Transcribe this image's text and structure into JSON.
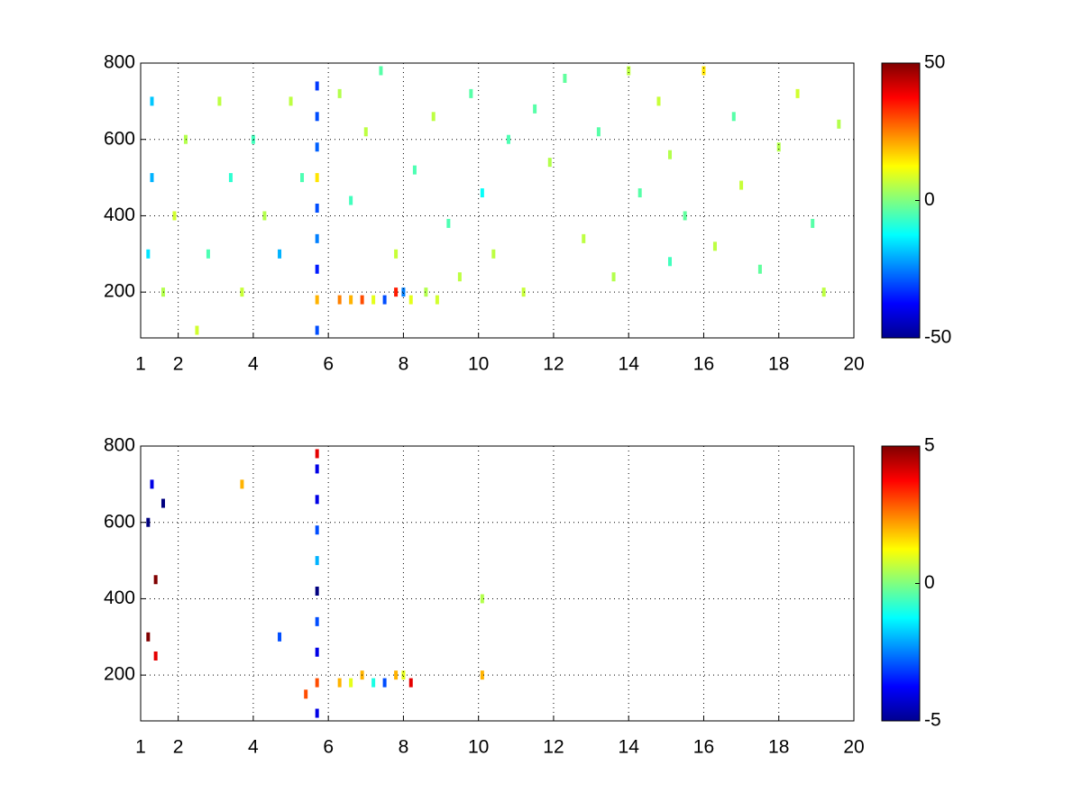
{
  "chart_data": [
    {
      "type": "heatmap",
      "colormap": "jet",
      "grid": true,
      "xlim": [
        1,
        20
      ],
      "xticks": [
        1,
        2,
        4,
        6,
        8,
        10,
        12,
        14,
        16,
        18,
        20
      ],
      "ylim": [
        80,
        800
      ],
      "yticks": [
        200,
        400,
        600,
        800
      ],
      "clim": [
        -50,
        50
      ],
      "cticks": [
        -50,
        0,
        50
      ],
      "x": [
        5.7,
        5.7,
        5.7,
        5.7,
        5.7,
        5.7,
        5.7,
        5.7,
        5.7,
        6.3,
        6.6,
        6.9,
        7.2,
        7.5,
        7.8,
        8.0,
        8.2,
        8.6,
        8.9,
        1.2,
        1.3,
        1.3,
        1.6,
        1.9,
        2.2,
        2.5,
        2.8,
        3.1,
        3.4,
        3.7,
        4.0,
        4.3,
        4.7,
        5.0,
        5.3,
        6.3,
        6.6,
        7.0,
        7.4,
        7.8,
        8.3,
        8.8,
        9.2,
        9.5,
        9.8,
        10.1,
        10.4,
        10.8,
        11.2,
        11.5,
        11.9,
        12.3,
        12.8,
        13.2,
        13.6,
        14.0,
        14.3,
        14.8,
        15.1,
        15.1,
        15.5,
        16.0,
        16.3,
        16.8,
        17.0,
        17.5,
        18.0,
        18.5,
        18.9,
        19.2,
        19.6
      ],
      "y": [
        100,
        180,
        260,
        340,
        420,
        500,
        580,
        660,
        740,
        180,
        180,
        180,
        180,
        180,
        200,
        200,
        180,
        200,
        180,
        300,
        500,
        700,
        200,
        400,
        600,
        100,
        300,
        700,
        500,
        200,
        600,
        400,
        300,
        700,
        500,
        720,
        440,
        620,
        780,
        300,
        520,
        660,
        380,
        240,
        720,
        460,
        300,
        600,
        200,
        680,
        540,
        760,
        340,
        620,
        240,
        780,
        460,
        700,
        280,
        560,
        400,
        780,
        320,
        660,
        480,
        260,
        580,
        720,
        380,
        200,
        640
      ],
      "values": [
        -30,
        20,
        -35,
        -25,
        -30,
        15,
        -28,
        -30,
        -32,
        25,
        20,
        30,
        10,
        -30,
        35,
        -25,
        10,
        5,
        8,
        -15,
        -20,
        -18,
        5,
        8,
        5,
        8,
        -5,
        6,
        -8,
        7,
        -6,
        5,
        -20,
        6,
        -5,
        5,
        -6,
        6,
        -4,
        7,
        -5,
        6,
        -5,
        6,
        -4,
        -12,
        6,
        -5,
        7,
        -4,
        5,
        -3,
        6,
        -4,
        5,
        6,
        -4,
        7,
        -6,
        5,
        -3,
        15,
        6,
        -4,
        7,
        -3,
        5,
        8,
        -4,
        6,
        5
      ]
    },
    {
      "type": "heatmap",
      "colormap": "jet",
      "grid": true,
      "xlim": [
        1,
        20
      ],
      "xticks": [
        1,
        2,
        4,
        6,
        8,
        10,
        12,
        14,
        16,
        18,
        20
      ],
      "ylim": [
        80,
        800
      ],
      "yticks": [
        200,
        400,
        600,
        800
      ],
      "clim": [
        -5,
        5
      ],
      "cticks": [
        -5,
        0,
        5
      ],
      "x": [
        1.2,
        1.2,
        1.3,
        1.4,
        1.4,
        1.6,
        3.7,
        4.7,
        5.4,
        5.7,
        5.7,
        5.7,
        5.7,
        5.7,
        5.7,
        5.7,
        5.7,
        5.7,
        5.7,
        6.3,
        6.6,
        6.9,
        7.2,
        7.5,
        7.8,
        8.0,
        8.2,
        10.1,
        10.1
      ],
      "y": [
        600,
        300,
        700,
        450,
        250,
        650,
        700,
        300,
        150,
        100,
        180,
        260,
        340,
        420,
        500,
        580,
        660,
        740,
        780,
        180,
        180,
        200,
        180,
        180,
        200,
        200,
        180,
        400,
        200
      ],
      "values": [
        -5,
        5,
        -4,
        5,
        4,
        -5,
        2,
        -3,
        3,
        -4,
        3,
        -4,
        -3,
        -5,
        -2,
        -3,
        -4,
        -4,
        4,
        2,
        1,
        2,
        -1,
        -3,
        2,
        1,
        4,
        0.5,
        2
      ]
    }
  ]
}
